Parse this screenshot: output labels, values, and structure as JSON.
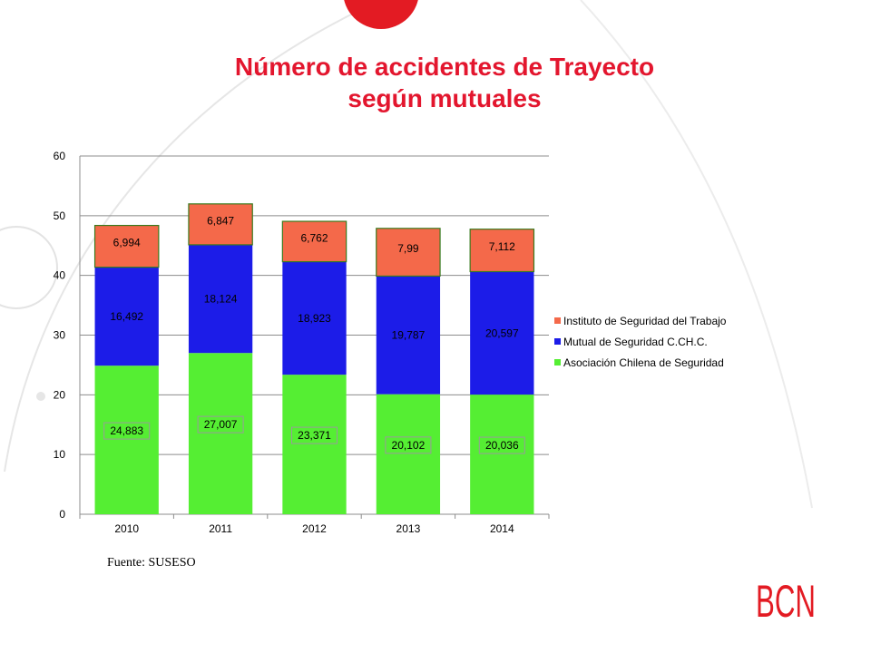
{
  "slide": {
    "title_line1": "Número de accidentes de Trayecto",
    "title_line2": "según mutuales",
    "source": "Fuente: SUSESO",
    "logo_text": "BCN"
  },
  "colors": {
    "title": "#e3162e",
    "decor": "#e31b23",
    "achs": "#55ee33",
    "mutual": "#1c1ce8",
    "ist": "#f4694a"
  },
  "chart_data": {
    "type": "bar",
    "stacked": true,
    "categories": [
      "2010",
      "2011",
      "2012",
      "2013",
      "2014"
    ],
    "ylim": [
      0,
      60
    ],
    "yticks": [
      0,
      10,
      20,
      30,
      40,
      50,
      60
    ],
    "grid": true,
    "legend_position": "right",
    "xlabel": "",
    "ylabel": "",
    "series": [
      {
        "name": "Asociación Chilena de Seguridad",
        "color": "#55ee33",
        "values": [
          24.883,
          27.007,
          23.371,
          20.102,
          20.036
        ],
        "labels": [
          "24,883",
          "27,007",
          "23,371",
          "20,102",
          "20,036"
        ]
      },
      {
        "name": "Mutual de Seguridad C.CH.C.",
        "color": "#1c1ce8",
        "values": [
          16.492,
          18.124,
          18.923,
          19.787,
          20.597
        ],
        "labels": [
          "16,492",
          "18,124",
          "18,923",
          "19,787",
          "20,597"
        ]
      },
      {
        "name": "Instituto de Seguridad del Trabajo",
        "color": "#f4694a",
        "values": [
          6.994,
          6.847,
          6.762,
          7.99,
          7.112
        ],
        "labels": [
          "6,994",
          "6,847",
          "6,762",
          "7,99",
          "7,112"
        ]
      }
    ]
  }
}
